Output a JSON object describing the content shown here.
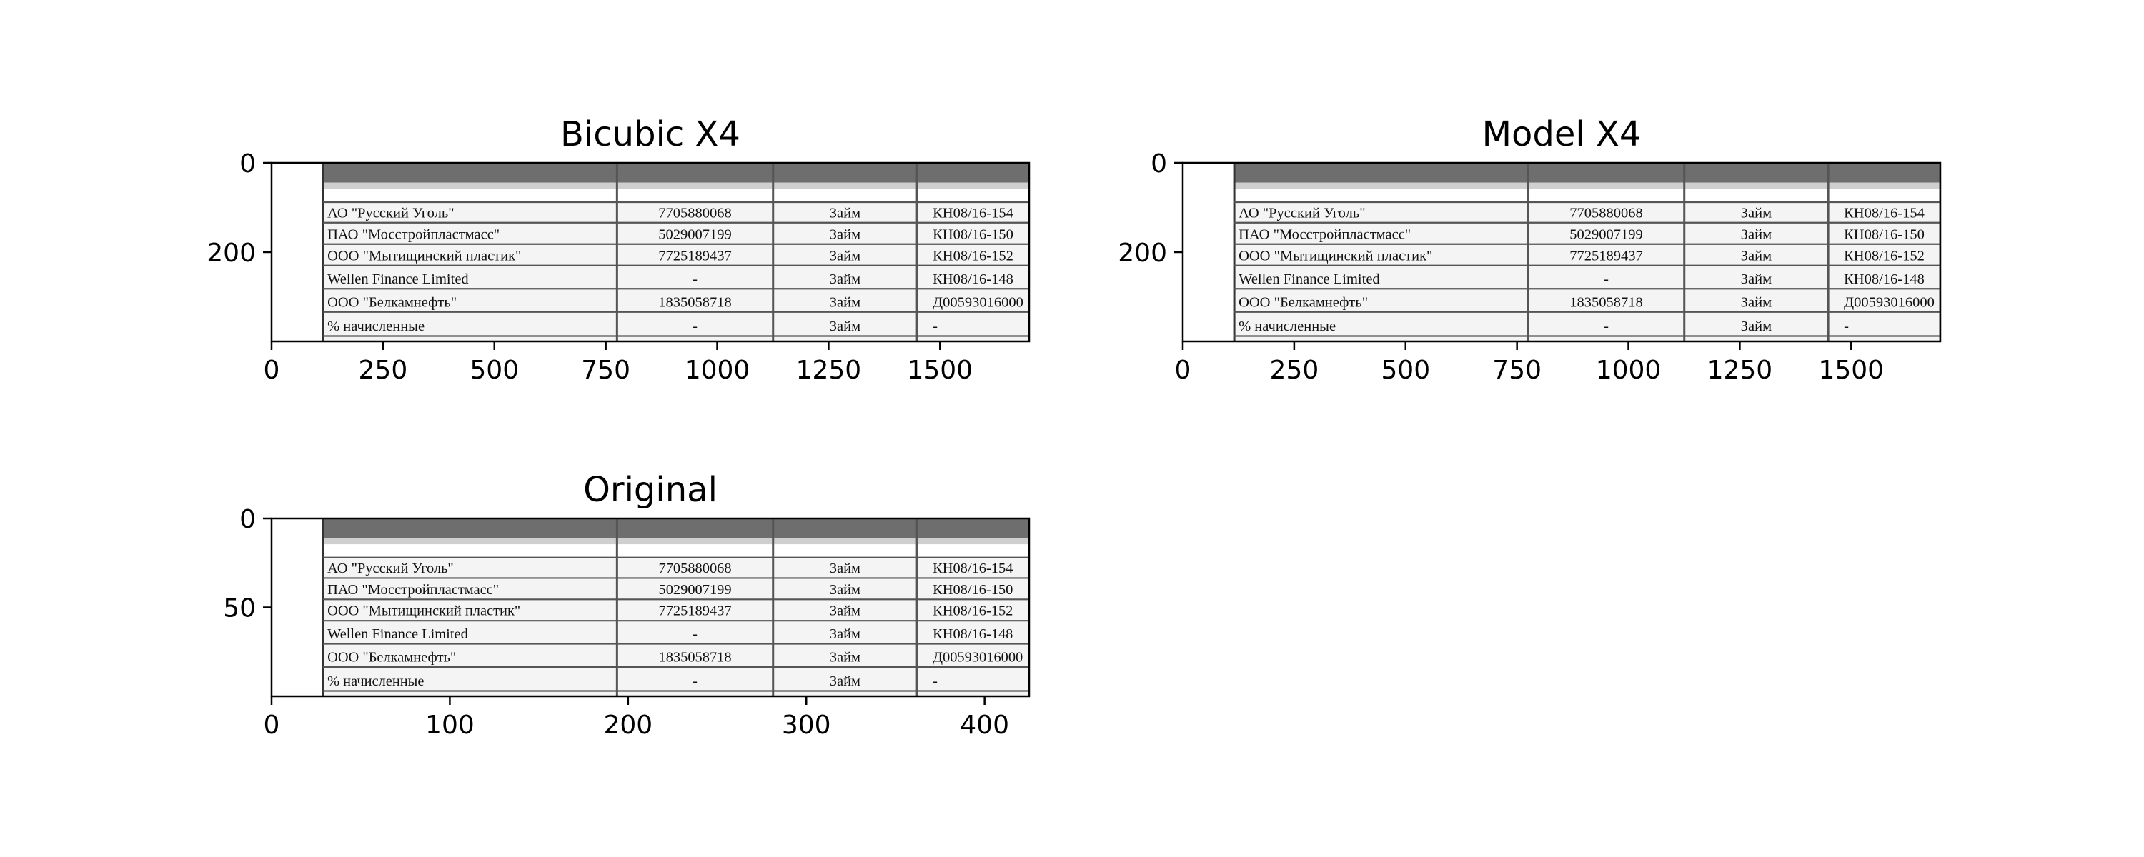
{
  "chart_data": [
    {
      "type": "image",
      "title": "Bicubic X4",
      "xlim": [
        0,
        1700
      ],
      "ylim": [
        400,
        0
      ],
      "xticks": [
        "0",
        "250",
        "500",
        "750",
        "1000",
        "1250",
        "1500"
      ],
      "xtick_values": [
        0,
        250,
        500,
        750,
        1000,
        1250,
        1500
      ],
      "yticks": [
        "0",
        "200"
      ],
      "ytick_values": [
        0,
        200
      ]
    },
    {
      "type": "image",
      "title": "Model X4",
      "xlim": [
        0,
        1700
      ],
      "ylim": [
        400,
        0
      ],
      "xticks": [
        "0",
        "250",
        "500",
        "750",
        "1000",
        "1250",
        "1500"
      ],
      "xtick_values": [
        0,
        250,
        500,
        750,
        1000,
        1250,
        1500
      ],
      "yticks": [
        "0",
        "200"
      ],
      "ytick_values": [
        0,
        200
      ]
    },
    {
      "type": "image",
      "title": "Original",
      "xlim": [
        0,
        425
      ],
      "ylim": [
        100,
        0
      ],
      "xticks": [
        "0",
        "100",
        "200",
        "300",
        "400"
      ],
      "xtick_values": [
        0,
        100,
        200,
        300,
        400
      ],
      "yticks": [
        "0",
        "50"
      ],
      "ytick_values": [
        0,
        50
      ]
    }
  ],
  "table": {
    "rows": [
      [
        "АО \"Русский Уголь\"",
        "7705880068",
        "Займ",
        "КН08/16-154"
      ],
      [
        "ПАО \"Мосстройпластмасс\"",
        "5029007199",
        "Займ",
        "КН08/16-150"
      ],
      [
        "ООО \"Мытищинский пластик\"",
        "7725189437",
        "Займ",
        "КН08/16-152"
      ],
      [
        "Wellen Finance Limited",
        "-",
        "Займ",
        "КН08/16-148"
      ],
      [
        "ООО \"Белкамнефть\"",
        "1835058718",
        "Займ",
        "Д00593016000"
      ],
      [
        "% начисленные",
        "-",
        "Займ",
        "-"
      ]
    ]
  }
}
